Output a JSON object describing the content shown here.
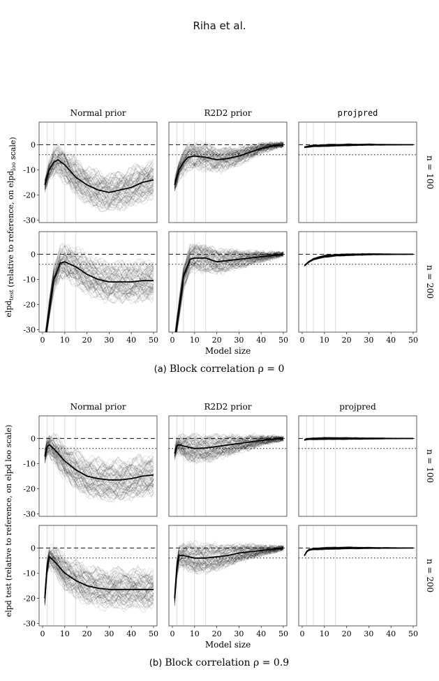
{
  "header": {
    "text": "Riha et al."
  },
  "figures": [
    {
      "caption_label": "(a)",
      "caption_text": "Block correlation ρ = 0",
      "ylabel": "elpd_test (relative to reference, on elpd_loo scale)",
      "ylabel_main": "elpd",
      "ylabel_sub": "test",
      "ylabel_mid": " (relative to reference, on elpd",
      "ylabel_sub2": "loo",
      "ylabel_end": " scale)",
      "xlabel": "Model size",
      "columns": [
        "Normal prior",
        "R2D2 prior",
        "projpred"
      ],
      "rows": [
        "n = 100",
        "n = 200"
      ]
    },
    {
      "caption_label": "(b)",
      "caption_text": "Block correlation ρ = 0.9",
      "ylabel": "elpd test (relative to reference, on elpd loo scale)",
      "xlabel": "Model size",
      "columns": [
        "Normal prior",
        "R2D2 prior",
        "projpred"
      ],
      "rows": [
        "n = 100",
        "n = 200"
      ]
    }
  ],
  "chart_data": [
    {
      "type": "line",
      "title": "(a) Block correlation ρ = 0",
      "xlabel": "Model size",
      "ylabel": "elpd_test (relative to reference, on elpd_loo scale)",
      "xlim": [
        0,
        50
      ],
      "ylim": [
        -31,
        9
      ],
      "xticks": [
        0,
        10,
        20,
        30,
        40,
        50
      ],
      "yticks": [
        0,
        -10,
        -20,
        -30
      ],
      "reference_lines": {
        "dashed": 0,
        "dotted": -4
      },
      "vertical_gridlines": [
        2,
        5,
        10,
        15
      ],
      "panels": [
        {
          "column": "Normal prior",
          "row": "n = 100",
          "mean": {
            "x": [
              1,
              3,
              5,
              7,
              10,
              15,
              20,
              25,
              30,
              35,
              40,
              45,
              50
            ],
            "y": [
              -16,
              -10,
              -7,
              -6,
              -8,
              -13,
              -16,
              -18,
              -19,
              -18,
              -17,
              -15,
              -14
            ]
          }
        },
        {
          "column": "R2D2 prior",
          "row": "n = 100",
          "mean": {
            "x": [
              1,
              3,
              5,
              7,
              10,
              15,
              20,
              25,
              30,
              35,
              40,
              45,
              50
            ],
            "y": [
              -16,
              -10,
              -7,
              -5,
              -4.5,
              -5,
              -6,
              -5.5,
              -4.5,
              -3,
              -1.5,
              -0.5,
              0
            ]
          }
        },
        {
          "column": "projpred",
          "row": "n = 100",
          "mean": {
            "x": [
              1,
              3,
              5,
              10,
              20,
              30,
              40,
              50
            ],
            "y": [
              -1,
              -0.7,
              -0.5,
              -0.3,
              -0.1,
              0,
              0,
              0
            ]
          }
        },
        {
          "column": "Normal prior",
          "row": "n = 200",
          "mean": {
            "x": [
              1,
              3,
              5,
              8,
              10,
              15,
              20,
              25,
              30,
              35,
              40,
              45,
              50
            ],
            "y": [
              -35,
              -22,
              -10,
              -3.5,
              -3,
              -5,
              -8,
              -10,
              -11,
              -11,
              -11,
              -10.5,
              -10.5
            ]
          }
        },
        {
          "column": "R2D2 prior",
          "row": "n = 200",
          "mean": {
            "x": [
              1,
              3,
              5,
              8,
              10,
              15,
              20,
              25,
              30,
              35,
              40,
              45,
              50
            ],
            "y": [
              -35,
              -22,
              -9,
              -2,
              -1.5,
              -1.5,
              -3,
              -2.5,
              -2,
              -1.5,
              -1,
              -0.5,
              0
            ]
          }
        },
        {
          "column": "projpred",
          "row": "n = 200",
          "mean": {
            "x": [
              1,
              3,
              5,
              8,
              10,
              15,
              20,
              30,
              40,
              50
            ],
            "y": [
              -4.5,
              -3,
              -2,
              -1.2,
              -0.8,
              -0.4,
              -0.2,
              0,
              0,
              0
            ]
          }
        }
      ]
    },
    {
      "type": "line",
      "title": "(b) Block correlation ρ = 0.9",
      "xlabel": "Model size",
      "ylabel": "elpd test (relative to reference, on elpd loo scale)",
      "xlim": [
        0,
        50
      ],
      "ylim": [
        -31,
        9
      ],
      "xticks": [
        0,
        10,
        20,
        30,
        40,
        50
      ],
      "yticks": [
        0,
        -10,
        -20,
        -30
      ],
      "reference_lines": {
        "dashed": 0,
        "dotted": -4
      },
      "vertical_gridlines": [
        2,
        5,
        10,
        15
      ],
      "panels": [
        {
          "column": "Normal prior",
          "row": "n = 100",
          "mean": {
            "x": [
              1,
              2,
              3,
              5,
              10,
              15,
              20,
              25,
              30,
              35,
              40,
              45,
              50
            ],
            "y": [
              -7,
              -3.5,
              -2.5,
              -4,
              -9,
              -12.5,
              -15,
              -16,
              -16.5,
              -16.5,
              -16,
              -15,
              -14.5
            ]
          }
        },
        {
          "column": "R2D2 prior",
          "row": "n = 100",
          "mean": {
            "x": [
              1,
              2,
              3,
              5,
              10,
              15,
              20,
              25,
              30,
              35,
              40,
              45,
              50
            ],
            "y": [
              -6,
              -3,
              -2.5,
              -3,
              -4,
              -3.8,
              -3.2,
              -2.6,
              -2,
              -1.4,
              -0.8,
              -0.3,
              0
            ]
          }
        },
        {
          "column": "projpred",
          "row": "n = 100",
          "mean": {
            "x": [
              1,
              2,
              3,
              5,
              10,
              20,
              30,
              40,
              50
            ],
            "y": [
              -0.6,
              -0.3,
              -0.2,
              -0.1,
              0,
              0,
              0,
              0,
              0
            ]
          }
        },
        {
          "column": "Normal prior",
          "row": "n = 200",
          "mean": {
            "x": [
              1,
              2,
              3,
              5,
              10,
              15,
              20,
              25,
              30,
              35,
              40,
              45,
              50
            ],
            "y": [
              -20,
              -8,
              -3.5,
              -5,
              -10,
              -13,
              -15,
              -16,
              -16.5,
              -16.5,
              -16.5,
              -16.5,
              -16.5
            ]
          }
        },
        {
          "column": "R2D2 prior",
          "row": "n = 200",
          "mean": {
            "x": [
              1,
              2,
              3,
              5,
              10,
              15,
              20,
              25,
              30,
              35,
              40,
              45,
              50
            ],
            "y": [
              -20,
              -8,
              -3,
              -3,
              -4,
              -4,
              -3.5,
              -3,
              -2,
              -1.5,
              -1,
              -0.5,
              0
            ]
          }
        },
        {
          "column": "projpred",
          "row": "n = 200",
          "mean": {
            "x": [
              1,
              2,
              3,
              5,
              10,
              20,
              30,
              40,
              50
            ],
            "y": [
              -3,
              -1.5,
              -0.8,
              -0.4,
              -0.2,
              0,
              0,
              0,
              0
            ]
          }
        }
      ]
    }
  ]
}
